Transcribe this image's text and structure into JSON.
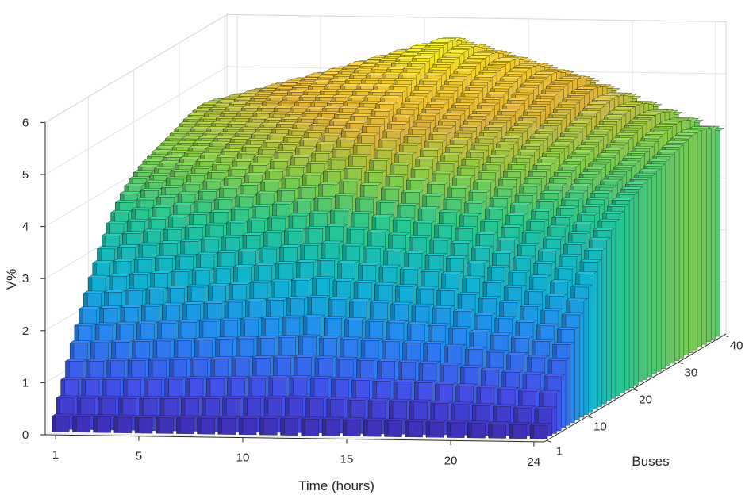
{
  "chart_data": {
    "type": "bar3",
    "xlabel": "Time (hours)",
    "ylabel": "Buses",
    "zlabel": "V%",
    "x_range": [
      1,
      24
    ],
    "y_range": [
      1,
      40
    ],
    "z_range": [
      0,
      6
    ],
    "x_ticks": [
      "1",
      "5",
      "10",
      "15",
      "20",
      "24"
    ],
    "y_ticks": [
      "1",
      "10",
      "20",
      "30",
      "40"
    ],
    "z_ticks": [
      "0",
      "1",
      "2",
      "3",
      "4",
      "5",
      "6"
    ],
    "grid": true,
    "colormap": "parula",
    "description_of_values": "V%(time, bus): ~0 at bus 1, increasing with bus index; peaks around buses 26, 33 and 40; higher at mid-day hours",
    "series": [
      {
        "hour": 1,
        "values": [
          0.0,
          0.3,
          0.6,
          0.9,
          1.2,
          1.5,
          1.78,
          2.05,
          2.3,
          2.55,
          2.78,
          3.0,
          3.2,
          3.38,
          3.54,
          3.68,
          3.8,
          3.9,
          3.98,
          4.05,
          4.11,
          4.16,
          4.2,
          4.24,
          4.27,
          4.3,
          4.34,
          4.38,
          4.42,
          4.46,
          4.5,
          4.53,
          4.56,
          4.58,
          4.58,
          4.56,
          4.54,
          4.5,
          4.44,
          4.36
        ]
      },
      {
        "hour": 6,
        "values": [
          0.0,
          0.3,
          0.62,
          0.94,
          1.26,
          1.58,
          1.88,
          2.17,
          2.45,
          2.72,
          2.97,
          3.21,
          3.43,
          3.63,
          3.82,
          3.98,
          4.12,
          4.25,
          4.35,
          4.44,
          4.52,
          4.59,
          4.65,
          4.7,
          4.74,
          4.78,
          4.84,
          4.9,
          4.95,
          5.0,
          5.05,
          5.09,
          5.12,
          5.14,
          5.14,
          5.12,
          5.08,
          5.02,
          4.94,
          4.84
        ]
      },
      {
        "hour": 12,
        "values": [
          0.0,
          0.32,
          0.66,
          1.0,
          1.34,
          1.68,
          2.01,
          2.33,
          2.64,
          2.94,
          3.22,
          3.49,
          3.74,
          3.98,
          4.2,
          4.4,
          4.58,
          4.74,
          4.88,
          5.0,
          5.1,
          5.19,
          5.27,
          5.34,
          5.4,
          5.45,
          5.52,
          5.58,
          5.64,
          5.69,
          5.74,
          5.78,
          5.81,
          5.83,
          5.84,
          5.82,
          5.78,
          5.72,
          5.64,
          5.54
        ]
      },
      {
        "hour": 18,
        "values": [
          0.0,
          0.3,
          0.62,
          0.94,
          1.26,
          1.58,
          1.88,
          2.17,
          2.45,
          2.72,
          2.97,
          3.21,
          3.43,
          3.63,
          3.82,
          3.98,
          4.12,
          4.25,
          4.35,
          4.44,
          4.52,
          4.59,
          4.65,
          4.7,
          4.74,
          4.78,
          4.84,
          4.9,
          4.95,
          5.0,
          5.05,
          5.09,
          5.12,
          5.14,
          5.14,
          5.12,
          5.08,
          5.02,
          4.94,
          4.84
        ]
      },
      {
        "hour": 24,
        "values": [
          0.0,
          0.26,
          0.52,
          0.78,
          1.04,
          1.3,
          1.55,
          1.79,
          2.02,
          2.24,
          2.45,
          2.65,
          2.83,
          3.0,
          3.15,
          3.28,
          3.4,
          3.5,
          3.58,
          3.65,
          3.71,
          3.76,
          3.8,
          3.84,
          3.87,
          3.9,
          3.94,
          3.98,
          4.02,
          4.06,
          4.1,
          4.13,
          4.16,
          4.18,
          4.18,
          4.16,
          4.14,
          4.1,
          4.04,
          3.96
        ]
      }
    ]
  }
}
